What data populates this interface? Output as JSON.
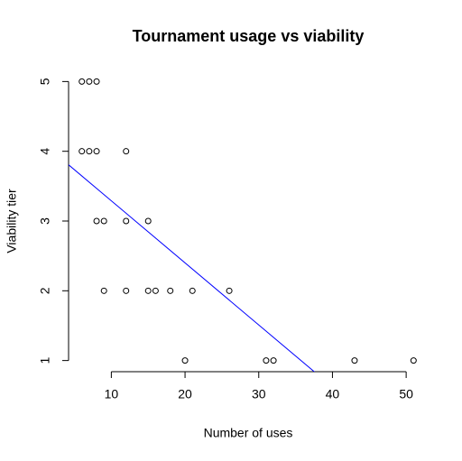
{
  "chart_data": {
    "type": "scatter",
    "title": "Tournament usage vs viability",
    "x_label": "Number of uses",
    "y_label": "Viability tier",
    "x": [
      6,
      7,
      8,
      6,
      7,
      8,
      12,
      8,
      9,
      12,
      15,
      9,
      12,
      15,
      16,
      18,
      21,
      26,
      20,
      31,
      32,
      43,
      51
    ],
    "values": [
      5,
      5,
      5,
      4,
      4,
      4,
      4,
      3,
      3,
      3,
      3,
      2,
      2,
      2,
      2,
      2,
      2,
      2,
      1,
      1,
      1,
      1,
      1
    ],
    "color": "#000000",
    "regression": {
      "intercept": 4.18,
      "slope": -0.089,
      "color": "#0000ff"
    },
    "xlim": [
      4.2,
      52.8
    ],
    "ylim": [
      0.84,
      5.16
    ],
    "xticks": [
      10,
      20,
      30,
      40,
      50
    ],
    "yticks": [
      1,
      2,
      3,
      4,
      5
    ]
  }
}
